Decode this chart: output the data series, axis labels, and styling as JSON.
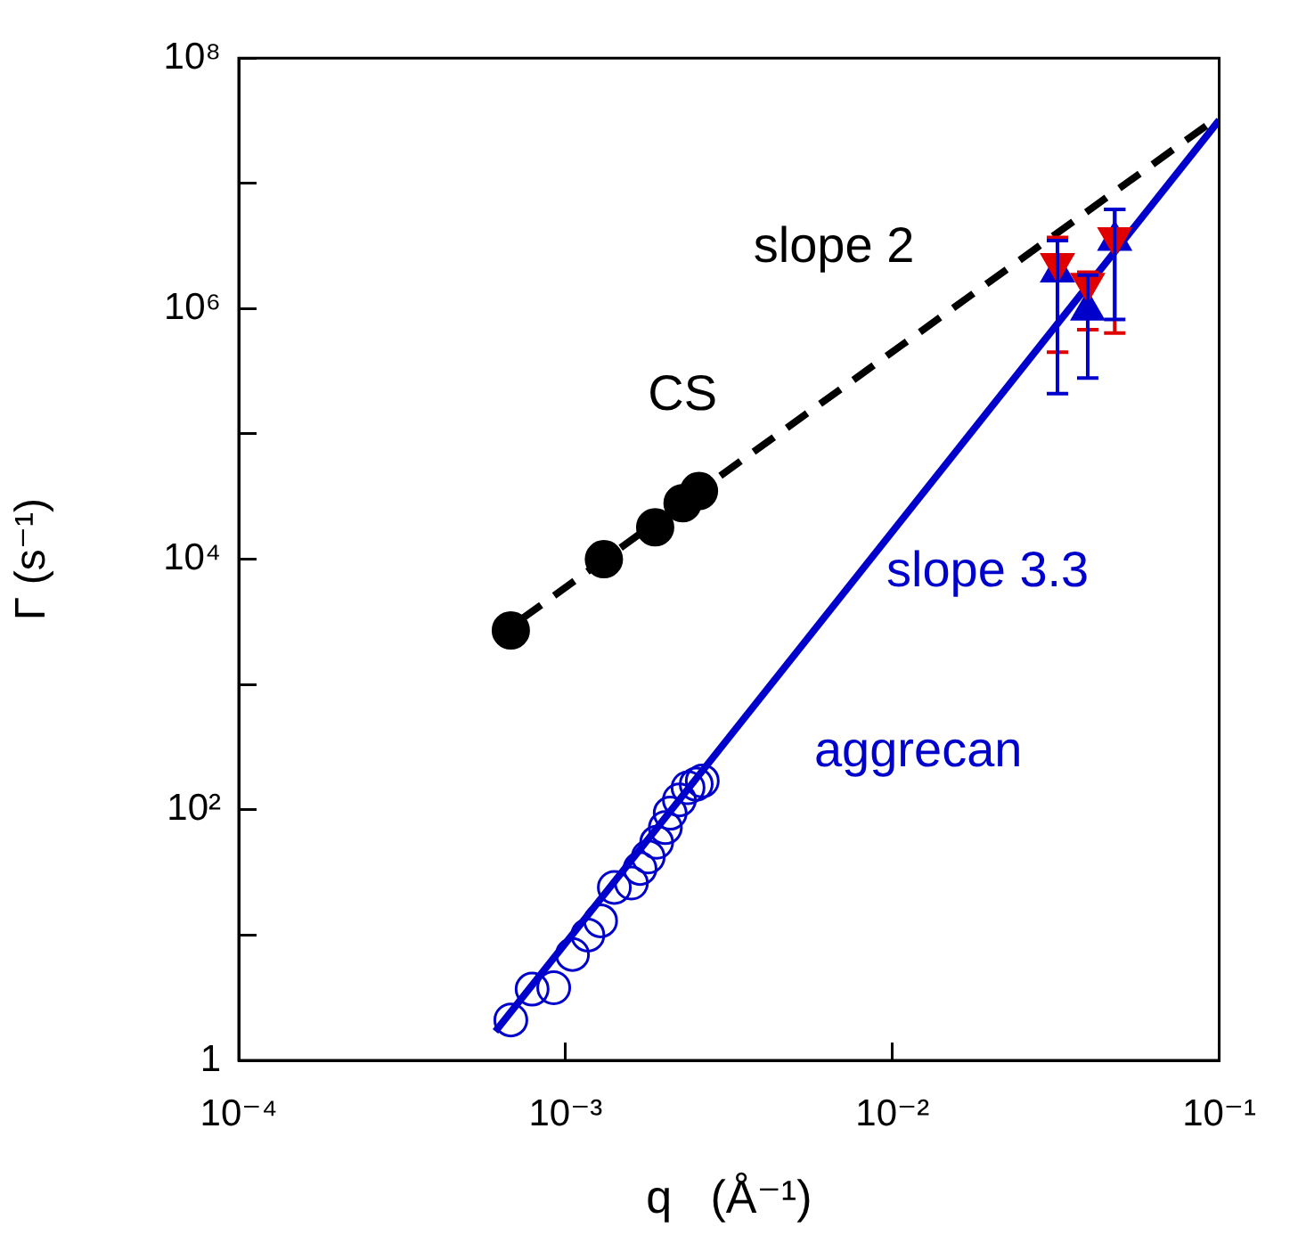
{
  "chart_data": {
    "type": "scatter",
    "xlabel": "q   (Å⁻¹)",
    "ylabel": "Γ (s⁻¹)",
    "log": "xy",
    "legend": false,
    "grid": false,
    "xlim": [
      0.0001,
      0.1
    ],
    "xticks": [
      {
        "value": 0.0001,
        "label": "10⁻⁴"
      },
      {
        "value": 0.001,
        "label": "10⁻³"
      },
      {
        "value": 0.01,
        "label": "10⁻²"
      },
      {
        "value": 0.1,
        "label": "10⁻¹"
      }
    ],
    "ylim": [
      1,
      100000000
    ],
    "yticks": [
      {
        "value": 1,
        "label": "1"
      },
      {
        "value": 10,
        "label": null
      },
      {
        "value": 100,
        "label": "10²"
      },
      {
        "value": 1000,
        "label": null
      },
      {
        "value": 10000,
        "label": "10⁴"
      },
      {
        "value": 100000,
        "label": null
      },
      {
        "value": 1000000,
        "label": "10⁶"
      },
      {
        "value": 10000000,
        "label": null
      },
      {
        "value": 100000000,
        "label": "10⁸"
      }
    ],
    "annotations": [
      "aggrecan"
    ],
    "series": [
      {
        "name": "slope 2",
        "type": "line",
        "color": "#000000",
        "line_style": "dashed",
        "marker": "none",
        "x": [
          0.00073,
          0.098
        ],
        "values": [
          3300,
          33000000
        ]
      },
      {
        "name": "slope 3.3",
        "type": "line",
        "color": "#0000cc",
        "line_style": "solid",
        "marker": "none",
        "x": [
          0.00061,
          0.1
        ],
        "values": [
          1.7,
          32000000
        ]
      },
      {
        "name": "CS",
        "color": "#000000",
        "marker": "circle",
        "x": [
          0.00068,
          0.00131,
          0.00188,
          0.00228,
          0.00256
        ],
        "values": [
          2700,
          10000,
          18000,
          28000,
          35000
        ]
      },
      {
        "color": "#0000cc",
        "marker": "circle",
        "x": [
          0.00068,
          0.00079,
          0.00092,
          0.00105,
          0.00117,
          0.00128,
          0.00141,
          0.00159,
          0.00169,
          0.00179,
          0.0019,
          0.00202,
          0.00209,
          0.00223,
          0.00237,
          0.00251,
          0.00262
        ],
        "values": [
          2.1,
          3.7,
          3.8,
          7,
          10,
          13,
          24,
          26,
          34,
          42,
          55,
          72,
          94,
          120,
          150,
          160,
          170
        ]
      },
      {
        "color": "#e00000",
        "marker": "triangle",
        "x": [
          0.032,
          0.0396,
          0.0479
        ],
        "values": [
          2300000,
          1600000,
          3700000
        ],
        "errors": [
          [
            450000,
            3700000
          ],
          [
            680000,
            1950000
          ],
          [
            640000,
            6200000
          ]
        ]
      },
      {
        "color": "#0000cc",
        "marker": "triangle",
        "x": [
          0.032,
          0.0396,
          0.0479
        ],
        "values": [
          1950000,
          970000,
          3500000
        ],
        "errors": [
          [
            210000,
            3500000
          ],
          [
            280000,
            1850000
          ],
          [
            820000,
            6200000
          ]
        ]
      }
    ]
  }
}
